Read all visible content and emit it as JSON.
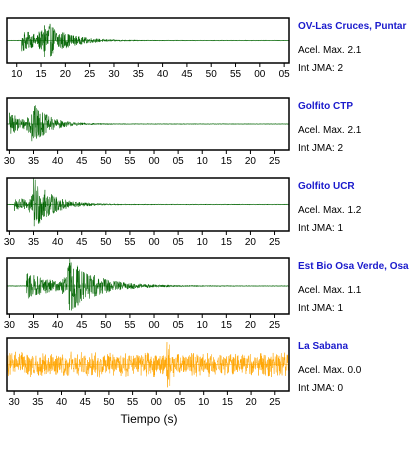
{
  "chart_data": {
    "type": "line",
    "xlabel": "Tiempo (s)",
    "panels": [
      {
        "station": "OV-Las Cruces, Puntar",
        "accel_label": "Acel. Max. 2.1",
        "jma_label": "Int JMA: 2",
        "color": "#006400",
        "xticks": [
          "10",
          "15",
          "20",
          "25",
          "30",
          "35",
          "40",
          "45",
          "50",
          "55",
          "00",
          "05"
        ],
        "xrange": [
          8,
          66
        ],
        "ticks_at": [
          10,
          15,
          20,
          25,
          30,
          35,
          40,
          45,
          50,
          55,
          60,
          65
        ],
        "trace": {
          "onset": 11,
          "peak_amp": 1.0,
          "decay": 4.5,
          "second_burst": 15.5,
          "second_amp": 0.9,
          "noise": 0.02
        }
      },
      {
        "station": "Golfito CTP",
        "accel_label": "Acel. Max. 2.1",
        "jma_label": "Int JMA: 2",
        "color": "#006400",
        "xticks": [
          "30",
          "35",
          "40",
          "45",
          "50",
          "55",
          "00",
          "05",
          "10",
          "15",
          "20",
          "25"
        ],
        "xrange": [
          29.5,
          88
        ],
        "ticks_at": [
          30,
          35,
          40,
          45,
          50,
          55,
          60,
          65,
          70,
          75,
          80,
          85
        ],
        "trace": {
          "onset": 30,
          "peak_amp": 0.85,
          "decay": 3.5,
          "second_burst": 34.5,
          "second_amp": 0.9,
          "noise": 0.02
        }
      },
      {
        "station": "Golfito UCR",
        "accel_label": "Acel. Max. 1.2",
        "jma_label": "Int JMA: 1",
        "color": "#006400",
        "xticks": [
          "30",
          "35",
          "40",
          "45",
          "50",
          "55",
          "00",
          "05",
          "10",
          "15",
          "20",
          "25"
        ],
        "xrange": [
          29.5,
          88
        ],
        "ticks_at": [
          30,
          35,
          40,
          45,
          50,
          55,
          60,
          65,
          70,
          75,
          80,
          85
        ],
        "trace": {
          "onset": 31,
          "peak_amp": 0.6,
          "decay": 4.0,
          "second_burst": 35,
          "second_amp": 1.0,
          "noise": 0.02
        }
      },
      {
        "station": "Est Bio Osa Verde, Osa",
        "accel_label": "Acel. Max. 1.1",
        "jma_label": "Int JMA: 1",
        "color": "#006400",
        "xticks": [
          "30",
          "35",
          "40",
          "45",
          "50",
          "55",
          "00",
          "05",
          "10",
          "15",
          "20",
          "25"
        ],
        "xrange": [
          29.5,
          88
        ],
        "ticks_at": [
          30,
          35,
          40,
          45,
          50,
          55,
          60,
          65,
          70,
          75,
          80,
          85
        ],
        "trace": {
          "onset": 33.5,
          "peak_amp": 0.95,
          "decay": 6.0,
          "second_burst": 42,
          "second_amp": 1.0,
          "noise": 0.02
        }
      },
      {
        "station": "La Sabana",
        "accel_label": "Acel. Max. 0.0",
        "jma_label": "Int JMA: 0",
        "color": "#ffa500",
        "xticks": [
          "30",
          "35",
          "40",
          "45",
          "50",
          "55",
          "00",
          "05",
          "10",
          "15",
          "20",
          "25"
        ],
        "xrange": [
          28.5,
          88
        ],
        "ticks_at": [
          30,
          35,
          40,
          45,
          50,
          55,
          60,
          65,
          70,
          75,
          80,
          85
        ],
        "trace": {
          "onset": 0,
          "peak_amp": 0.0,
          "decay": 1.0,
          "second_burst": 62.5,
          "second_amp": 0.0,
          "noise": 0.55
        }
      }
    ]
  }
}
